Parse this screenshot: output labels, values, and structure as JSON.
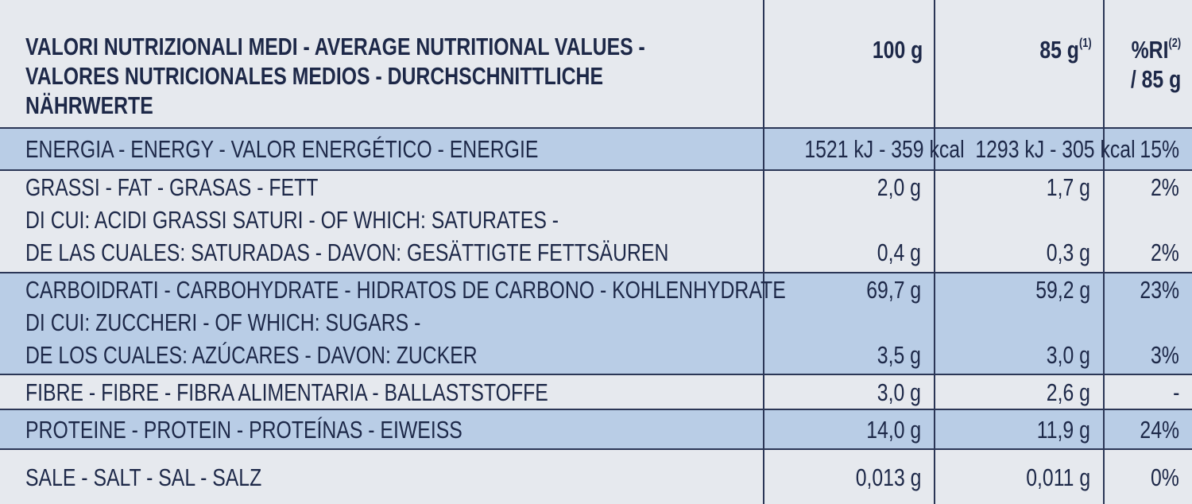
{
  "header": {
    "title": [
      "VALORI NUTRIZIONALI MEDI - AVERAGE NUTRITIONAL VALUES -",
      "VALORES NUTRICIONALES MEDIOS - DURCHSCHNITTLICHE",
      "NÄHRWERTE"
    ],
    "columns": [
      {
        "text": "100 g"
      },
      {
        "text": "85 g",
        "note": "(1)"
      },
      {
        "text": "%RI",
        "note": "(2)",
        "sub": "/ 85 g"
      }
    ]
  },
  "rows": [
    {
      "items": [
        {
          "label": [
            "ENERGIA - ENERGY - VALOR ENERGÉTICO - ENERGIE"
          ],
          "values": [
            "1521 kJ - 359 kcal",
            "1293 kJ - 305 kcal",
            "15%"
          ]
        }
      ]
    },
    {
      "items": [
        {
          "label": [
            "GRASSI - FAT - GRASAS - FETT"
          ],
          "values": [
            "2,0 g",
            "1,7 g",
            "2%"
          ]
        },
        {
          "label": [
            "DI CUI: ACIDI GRASSI SATURI - OF WHICH: SATURATES -",
            "DE LAS CUALES: SATURADAS - DAVON: GESÄTTIGTE FETTSÄUREN"
          ],
          "values": [
            "0,4 g",
            "0,3 g",
            "2%"
          ]
        }
      ]
    },
    {
      "items": [
        {
          "label": [
            "CARBOIDRATI - CARBOHYDRATE - HIDRATOS DE CARBONO - KOHLENHYDRATE"
          ],
          "values": [
            "69,7 g",
            "59,2 g",
            "23%"
          ]
        },
        {
          "label": [
            "DI CUI: ZUCCHERI - OF WHICH: SUGARS -",
            "DE LOS CUALES: AZÚCARES - DAVON: ZUCKER"
          ],
          "values": [
            "3,5 g",
            "3,0 g",
            "3%"
          ]
        }
      ]
    },
    {
      "items": [
        {
          "label": [
            "FIBRE - FIBRE - FIBRA ALIMENTARIA - BALLASTSTOFFE"
          ],
          "values": [
            "3,0 g",
            "2,6 g",
            "-"
          ]
        }
      ]
    },
    {
      "items": [
        {
          "label": [
            "PROTEINE - PROTEIN - PROTEÍNAS - EIWEISS"
          ],
          "values": [
            "14,0 g",
            "11,9 g",
            "24%"
          ]
        }
      ]
    },
    {
      "items": [
        {
          "label": [
            "SALE - SALT - SAL - SALZ"
          ],
          "values": [
            "0,013 g",
            "0,011 g",
            "0%"
          ]
        }
      ]
    }
  ]
}
